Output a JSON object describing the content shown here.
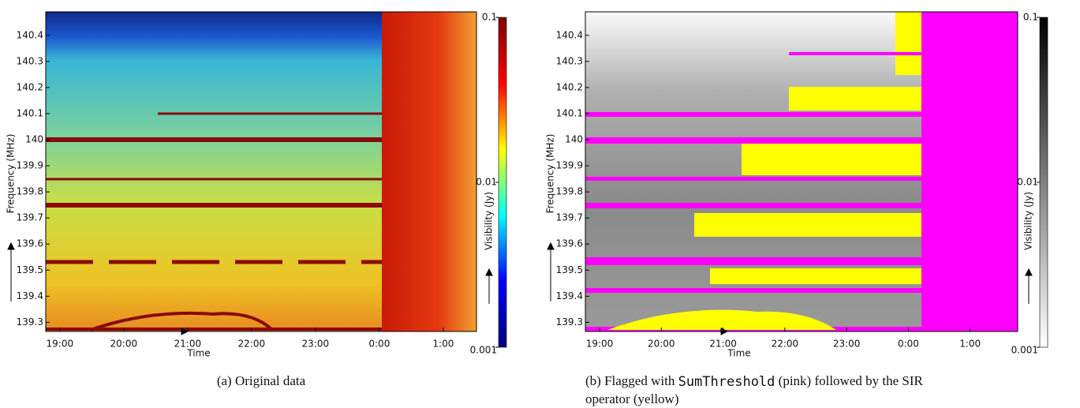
{
  "chart_data": [
    {
      "type": "heatmap",
      "xlabel": "Time",
      "ylabel": "Frequency (MHz)",
      "xlim": [
        18.78,
        25.52
      ],
      "ylim": [
        139.265,
        140.49
      ],
      "xticks": [
        {
          "value": 19,
          "label": "19:00"
        },
        {
          "value": 20,
          "label": "20:00"
        },
        {
          "value": 21,
          "label": "21:00"
        },
        {
          "value": 22,
          "label": "22:00"
        },
        {
          "value": 23,
          "label": "23:00"
        },
        {
          "value": 24,
          "label": "0:00"
        },
        {
          "value": 25,
          "label": "1:00"
        }
      ],
      "yticks": [
        139.3,
        139.4,
        139.5,
        139.6,
        139.7,
        139.8,
        139.9,
        140,
        140.1,
        140.2,
        140.3,
        140.4
      ],
      "colorbar": {
        "label": "Visibility (Jy)",
        "log": true,
        "lim": [
          0.001,
          0.1
        ],
        "ticks": [
          0.001,
          0.01,
          0.1
        ],
        "colors": [
          "#00007f",
          "#0000ff",
          "#00ffff",
          "#ffff00",
          "#ff0000",
          "#7f0000"
        ]
      },
      "caption": [
        "(a) Original data"
      ]
    },
    {
      "type": "heatmap",
      "xlabel": "Time",
      "ylabel": "Frequency (MHz)",
      "xlim": [
        18.77,
        25.77
      ],
      "ylim": [
        139.265,
        140.49
      ],
      "xticks": [
        {
          "value": 19,
          "label": "19:00"
        },
        {
          "value": 20,
          "label": "20:00"
        },
        {
          "value": 21,
          "label": "21:00"
        },
        {
          "value": 22,
          "label": "22:00"
        },
        {
          "value": 23,
          "label": "23:00"
        },
        {
          "value": 24,
          "label": "0:00"
        },
        {
          "value": 25,
          "label": "1:00"
        }
      ],
      "yticks": [
        139.3,
        139.4,
        139.5,
        139.6,
        139.7,
        139.8,
        139.9,
        140,
        140.1,
        140.2,
        140.3,
        140.4
      ],
      "colorbar": {
        "label": "Visibility (Jy)",
        "log": true,
        "lim": [
          0.001,
          0.1
        ],
        "ticks": [
          0.001,
          0.01,
          0.1
        ],
        "colors": [
          "#ffffff",
          "#000000"
        ]
      },
      "caption": [
        "(b) Flagged with ",
        "SumThreshold",
        " (pink) followed by the SIR",
        "operator (yellow)"
      ]
    }
  ]
}
